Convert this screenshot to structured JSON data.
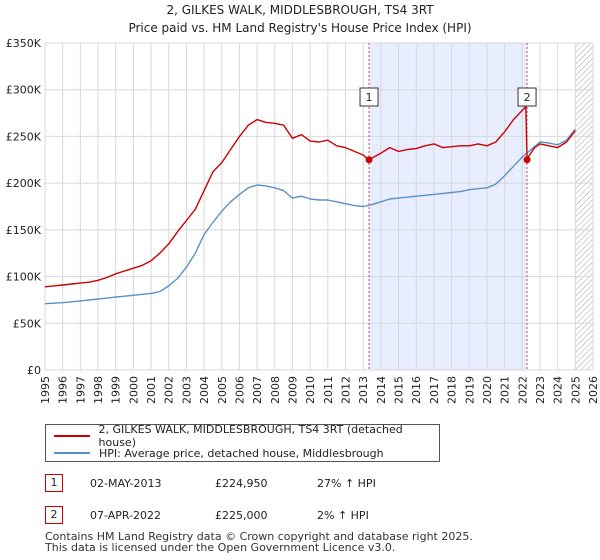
{
  "chart_data": {
    "type": "line",
    "title": "2, GILKES WALK, MIDDLESBROUGH, TS4 3RT",
    "subtitle": "Price paid vs. HM Land Registry's House Price Index (HPI)",
    "xlim": [
      1995,
      2026
    ],
    "ylim": [
      0,
      350000
    ],
    "x_ticks": [
      1995,
      1996,
      1997,
      1998,
      1999,
      2000,
      2001,
      2002,
      2003,
      2004,
      2005,
      2006,
      2007,
      2008,
      2009,
      2010,
      2011,
      2012,
      2013,
      2014,
      2015,
      2016,
      2017,
      2018,
      2019,
      2020,
      2021,
      2022,
      2023,
      2024,
      2025,
      2026
    ],
    "y_ticks": [
      {
        "value": 0,
        "label": "£0"
      },
      {
        "value": 50000,
        "label": "£50K"
      },
      {
        "value": 100000,
        "label": "£100K"
      },
      {
        "value": 150000,
        "label": "£150K"
      },
      {
        "value": 200000,
        "label": "£200K"
      },
      {
        "value": 250000,
        "label": "£250K"
      },
      {
        "value": 300000,
        "label": "£300K"
      },
      {
        "value": 350000,
        "label": "£350K"
      }
    ],
    "grid": true,
    "shaded_region": {
      "from": 2013.33,
      "to": 2022.27
    },
    "future_hatch_from": 2025.0,
    "series": [
      {
        "name": "2, GILKES WALK, MIDDLESBROUGH, TS4 3RT (detached house)",
        "color": "#cc0000",
        "x": [
          1995.0,
          1995.5,
          1996.0,
          1996.5,
          1997.0,
          1997.5,
          1998.0,
          1998.5,
          1999.0,
          1999.5,
          2000.0,
          2000.5,
          2001.0,
          2001.5,
          2002.0,
          2002.5,
          2003.0,
          2003.5,
          2004.0,
          2004.5,
          2005.0,
          2005.5,
          2006.0,
          2006.5,
          2007.0,
          2007.5,
          2008.0,
          2008.5,
          2009.0,
          2009.5,
          2010.0,
          2010.5,
          2011.0,
          2011.5,
          2012.0,
          2012.5,
          2013.0,
          2013.33,
          2013.6,
          2014.0,
          2014.5,
          2015.0,
          2015.5,
          2016.0,
          2016.5,
          2017.0,
          2017.5,
          2018.0,
          2018.5,
          2019.0,
          2019.5,
          2020.0,
          2020.5,
          2021.0,
          2021.5,
          2022.0,
          2022.2,
          2022.27,
          2022.4,
          2022.7,
          2023.0,
          2023.5,
          2024.0,
          2024.5,
          2025.0
        ],
        "y": [
          89000,
          90000,
          91000,
          92000,
          93000,
          94000,
          96000,
          99000,
          103000,
          106000,
          109000,
          112000,
          117000,
          125000,
          135000,
          148000,
          160000,
          172000,
          192000,
          212000,
          222000,
          236000,
          250000,
          262000,
          268000,
          265000,
          264000,
          262000,
          248000,
          252000,
          245000,
          244000,
          246000,
          240000,
          238000,
          234000,
          230000,
          224950,
          228000,
          232000,
          238000,
          234000,
          236000,
          237000,
          240000,
          242000,
          238000,
          239000,
          240000,
          240000,
          242000,
          240000,
          244000,
          255000,
          268000,
          278000,
          282000,
          225000,
          230000,
          238000,
          242000,
          240000,
          238000,
          244000,
          256000
        ]
      },
      {
        "name": "HPI: Average price, detached house, Middlesbrough",
        "color": "#5b8fc9",
        "x": [
          1995.0,
          1995.5,
          1996.0,
          1996.5,
          1997.0,
          1997.5,
          1998.0,
          1998.5,
          1999.0,
          1999.5,
          2000.0,
          2000.5,
          2001.0,
          2001.5,
          2002.0,
          2002.5,
          2003.0,
          2003.5,
          2004.0,
          2004.5,
          2005.0,
          2005.5,
          2006.0,
          2006.5,
          2007.0,
          2007.5,
          2008.0,
          2008.5,
          2009.0,
          2009.5,
          2010.0,
          2010.5,
          2011.0,
          2011.5,
          2012.0,
          2012.5,
          2013.0,
          2013.5,
          2014.0,
          2014.5,
          2015.0,
          2015.5,
          2016.0,
          2016.5,
          2017.0,
          2017.5,
          2018.0,
          2018.5,
          2019.0,
          2019.5,
          2020.0,
          2020.5,
          2021.0,
          2021.5,
          2022.0,
          2022.5,
          2023.0,
          2023.5,
          2024.0,
          2024.5,
          2025.0
        ],
        "y": [
          71000,
          71500,
          72000,
          73000,
          74000,
          75000,
          76000,
          77000,
          78000,
          79000,
          80000,
          81000,
          82000,
          84000,
          90000,
          98000,
          110000,
          125000,
          145000,
          158000,
          170000,
          180000,
          188000,
          195000,
          198000,
          197000,
          195000,
          192000,
          184000,
          186000,
          183000,
          182000,
          182000,
          180000,
          178000,
          176000,
          175000,
          177000,
          180000,
          183000,
          184000,
          185000,
          186000,
          187000,
          188000,
          189000,
          190000,
          191000,
          193000,
          194000,
          195000,
          199000,
          208000,
          218000,
          228000,
          236000,
          244000,
          243000,
          241000,
          246000,
          258000
        ]
      }
    ],
    "transactions": [
      {
        "marker": "1",
        "x": 2013.33,
        "y": 224950
      },
      {
        "marker": "2",
        "x": 2022.27,
        "y": 225000
      }
    ]
  },
  "legend": {
    "property_label": "2, GILKES WALK, MIDDLESBROUGH, TS4 3RT (detached house)",
    "hpi_label": "HPI: Average price, detached house, Middlesbrough"
  },
  "transactions_table": [
    {
      "marker": "1",
      "date": "02-MAY-2013",
      "price": "£224,950",
      "hpi_change": "27% ↑ HPI"
    },
    {
      "marker": "2",
      "date": "07-APR-2022",
      "price": "£225,000",
      "hpi_change": "2% ↑ HPI"
    }
  ],
  "footer": {
    "line1": "Contains HM Land Registry data © Crown copyright and database right 2025.",
    "line2": "This data is licensed under the Open Government Licence v3.0."
  },
  "colors": {
    "property": "#cc0000",
    "hpi": "#5b8fc9",
    "shade": "#e8eeff",
    "grid": "#d8d8d8"
  }
}
